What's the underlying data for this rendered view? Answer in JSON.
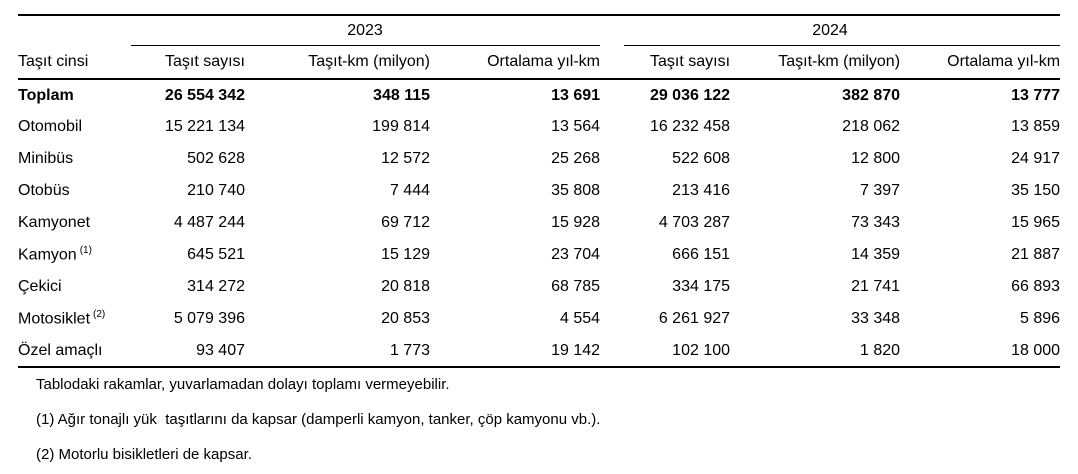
{
  "colors": {
    "background": "#ffffff",
    "text": "#000000",
    "rule": "#000000"
  },
  "table": {
    "type": "table",
    "row_header": "Taşıt cinsi",
    "year_groups": [
      "2023",
      "2024"
    ],
    "col_headers": [
      "Taşıt sayısı",
      "Taşıt-km (milyon)",
      "Ortalama yıl-km"
    ],
    "rows": [
      {
        "label": "Toplam",
        "superscript": "",
        "bold": true,
        "values": [
          "26 554 342",
          "348 115",
          "13 691",
          "29 036 122",
          "382 870",
          "13 777"
        ]
      },
      {
        "label": "Otomobil",
        "superscript": "",
        "bold": false,
        "values": [
          "15 221 134",
          "199 814",
          "13 564",
          "16 232 458",
          "218 062",
          "13 859"
        ]
      },
      {
        "label": "Minibüs",
        "superscript": "",
        "bold": false,
        "values": [
          "502 628",
          "12 572",
          "25 268",
          "522 608",
          "12 800",
          "24 917"
        ]
      },
      {
        "label": "Otobüs",
        "superscript": "",
        "bold": false,
        "values": [
          "210 740",
          "7 444",
          "35 808",
          "213 416",
          "7 397",
          "35 150"
        ]
      },
      {
        "label": "Kamyonet",
        "superscript": "",
        "bold": false,
        "values": [
          "4 487 244",
          "69 712",
          "15 928",
          "4 703 287",
          "73 343",
          "15 965"
        ]
      },
      {
        "label": "Kamyon",
        "superscript": "(1)",
        "bold": false,
        "values": [
          "645 521",
          "15 129",
          "23 704",
          "666 151",
          "14 359",
          "21 887"
        ]
      },
      {
        "label": "Çekici",
        "superscript": "",
        "bold": false,
        "values": [
          "314 272",
          "20 818",
          "68 785",
          "334 175",
          "21 741",
          "66 893"
        ]
      },
      {
        "label": "Motosiklet",
        "superscript": "(2)",
        "bold": false,
        "values": [
          "5 079 396",
          "20 853",
          "4 554",
          "6 261 927",
          "33 348",
          "5 896"
        ]
      },
      {
        "label": "Özel amaçlı",
        "superscript": "",
        "bold": false,
        "values": [
          "93 407",
          "1 773",
          "19 142",
          "102 100",
          "1 820",
          "18 000"
        ]
      }
    ]
  },
  "footnotes": [
    "Tablodaki rakamlar, yuvarlamadan dolayı toplamı vermeyebilir.",
    "(1) Ağır tonajlı yük  taşıtlarını da kapsar (damperli kamyon, tanker, çöp kamyonu vb.).",
    "(2) Motorlu bisikletleri de kapsar."
  ]
}
